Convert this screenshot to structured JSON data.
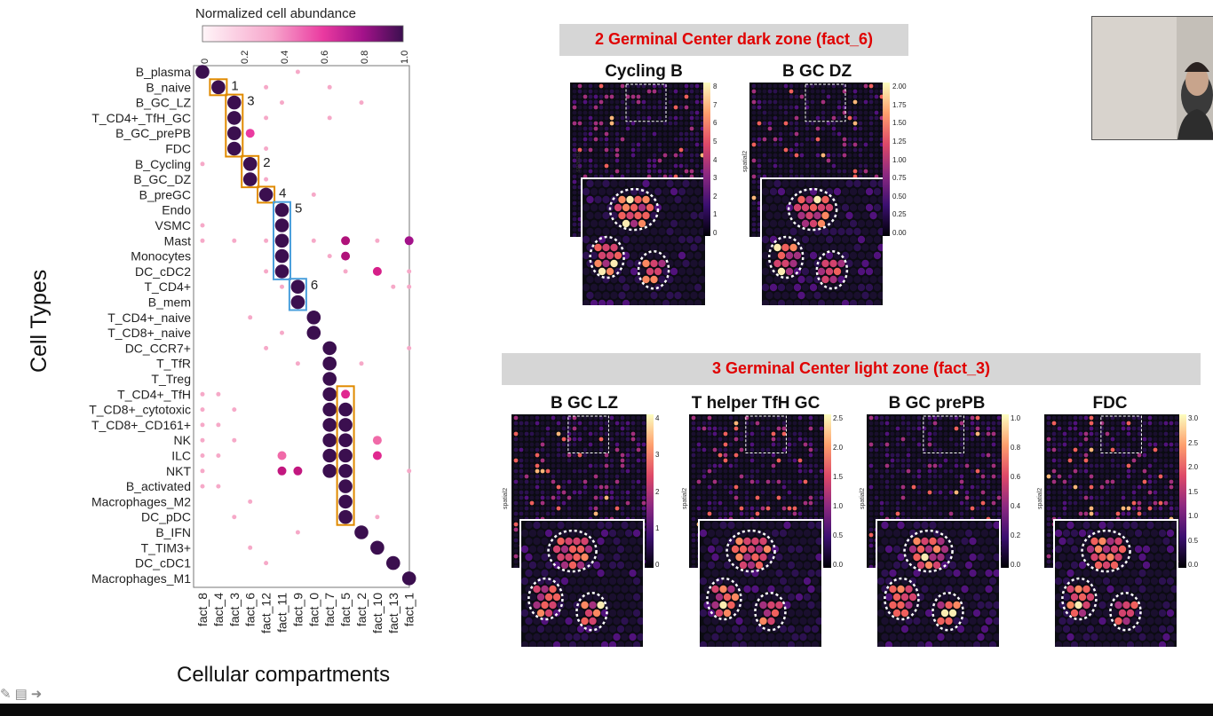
{
  "dotplot": {
    "legend_title": "Normalized cell abundance",
    "legend_ticks": [
      "0",
      "0.2",
      "0.4",
      "0.6",
      "0.8",
      "1.0"
    ],
    "y_axis_title": "Cell Types",
    "x_axis_title": "Cellular compartments",
    "cell_types": [
      "B_plasma",
      "B_naive",
      "B_GC_LZ",
      "T_CD4+_TfH_GC",
      "B_GC_prePB",
      "FDC",
      "B_Cycling",
      "B_GC_DZ",
      "B_preGC",
      "Endo",
      "VSMC",
      "Mast",
      "Monocytes",
      "DC_cDC2",
      "T_CD4+",
      "B_mem",
      "T_CD4+_naive",
      "T_CD8+_naive",
      "DC_CCR7+",
      "T_TfR",
      "T_Treg",
      "T_CD4+_TfH",
      "T_CD8+_cytotoxic",
      "T_CD8+_CD161+",
      "NK",
      "ILC",
      "NKT",
      "B_activated",
      "Macrophages_M2",
      "DC_pDC",
      "B_IFN",
      "T_TIM3+",
      "DC_cDC1",
      "Macrophages_M1"
    ],
    "factors": [
      "fact_8",
      "fact_4",
      "fact_3",
      "fact_6",
      "fact_12",
      "fact_11",
      "fact_9",
      "fact_0",
      "fact_7",
      "fact_5",
      "fact_2",
      "fact_10",
      "fact_13",
      "fact_1"
    ],
    "box_labels": [
      "1",
      "3",
      "2",
      "4",
      "5",
      "6"
    ],
    "colors": {
      "low": "#fde0e8",
      "mid": "#ea3aa0",
      "high": "#3b0f4f",
      "box_orange": "#e08a00",
      "box_blue": "#4a9fdc"
    }
  },
  "sections": {
    "dark_zone": {
      "banner": "2 Germinal Center dark zone (fact_6)",
      "panels": [
        {
          "title": "Cycling B",
          "ticks": [
            "8",
            "7",
            "6",
            "5",
            "4",
            "3",
            "2",
            "1",
            "0"
          ]
        },
        {
          "title": "B GC DZ",
          "ticks": [
            "2.00",
            "1.75",
            "1.50",
            "1.25",
            "1.00",
            "0.75",
            "0.50",
            "0.25",
            "0.00"
          ]
        }
      ]
    },
    "light_zone": {
      "banner": "3 Germinal Center light zone (fact_3)",
      "panels": [
        {
          "title": "B GC LZ",
          "ticks": [
            "4",
            "3",
            "2",
            "1",
            "0"
          ]
        },
        {
          "title": "T helper TfH GC",
          "ticks": [
            "2.5",
            "2.0",
            "1.5",
            "1.0",
            "0.5",
            "0.0"
          ]
        },
        {
          "title": "B GC prePB",
          "ticks": [
            "1.0",
            "0.8",
            "0.6",
            "0.4",
            "0.2",
            "0.0"
          ]
        },
        {
          "title": "FDC",
          "ticks": [
            "3.0",
            "2.5",
            "2.0",
            "1.5",
            "1.0",
            "0.5",
            "0.0"
          ]
        }
      ]
    },
    "spatial_axis_label": "spatial2"
  },
  "toolbar": {
    "icons": [
      "pen-icon",
      "notes-icon",
      "next-arrow-icon"
    ]
  }
}
